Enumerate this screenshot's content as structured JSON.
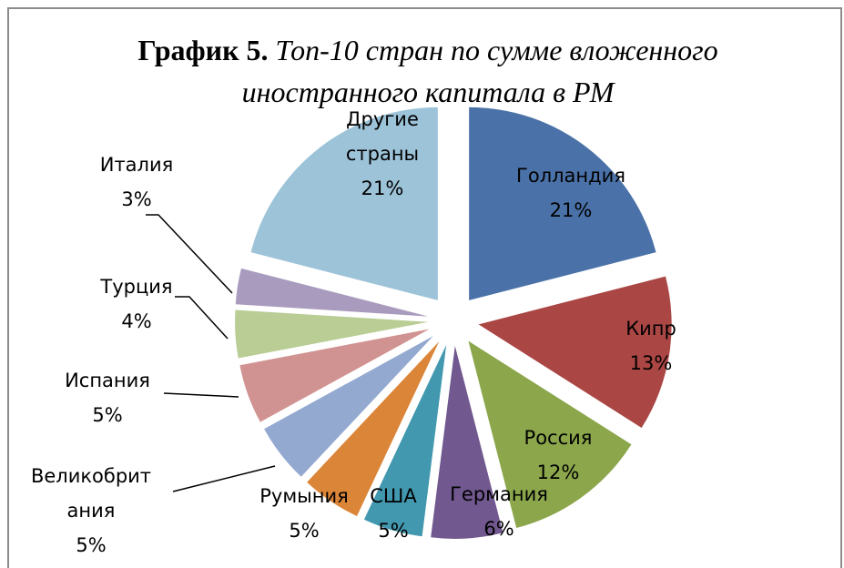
{
  "chart_data": {
    "type": "pie",
    "figure_label": "График 5.",
    "title": "Топ-10 стран по сумме вложенного иностранного капитала в РМ",
    "categories": [
      "Голландия",
      "Кипр",
      "Россия",
      "Германия",
      "США",
      "Румыния",
      "Великобритания",
      "Испания",
      "Турция",
      "Италия",
      "Другие страны"
    ],
    "values": [
      21,
      13,
      12,
      6,
      5,
      5,
      5,
      5,
      4,
      3,
      21
    ],
    "value_labels": [
      "21%",
      "13%",
      "12%",
      "6%",
      "5%",
      "5%",
      "5%",
      "5%",
      "4%",
      "3%",
      "21%"
    ],
    "colors": [
      "#4a72a8",
      "#aa4644",
      "#8ba64b",
      "#71588f",
      "#4298af",
      "#db8538",
      "#93a9d0",
      "#d19392",
      "#b9cd95",
      "#a99bbd",
      "#9dc3d9"
    ]
  }
}
